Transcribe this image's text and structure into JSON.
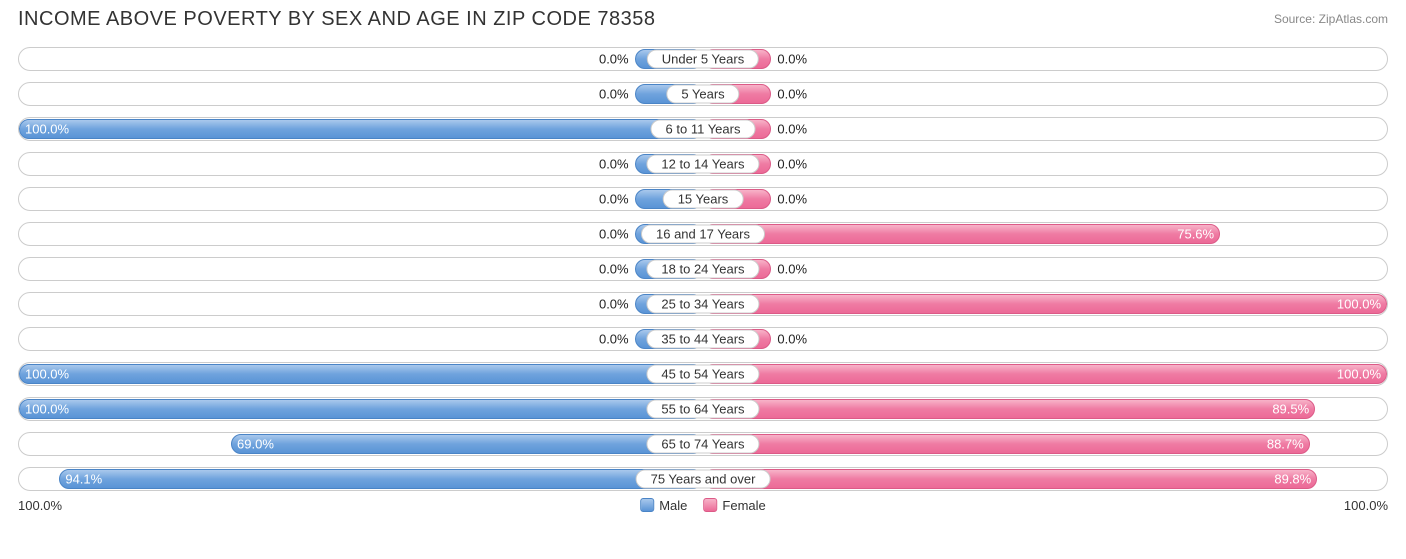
{
  "title": "INCOME ABOVE POVERTY BY SEX AND AGE IN ZIP CODE 78358",
  "source": "Source: ZipAtlas.com",
  "legend": {
    "male": "Male",
    "female": "Female"
  },
  "axis": {
    "left": "100.0%",
    "right": "100.0%"
  },
  "chart": {
    "type": "diverging-bar",
    "min_bar_pct": 10.0,
    "colors": {
      "male_bar": "#5a94d6",
      "female_bar": "#ec6a97",
      "border": "#cccccc",
      "background": "#ffffff",
      "text": "#333333"
    },
    "rows": [
      {
        "age": "Under 5 Years",
        "male": 0.0,
        "female": 0.0,
        "male_label": "0.0%",
        "female_label": "0.0%"
      },
      {
        "age": "5 Years",
        "male": 0.0,
        "female": 0.0,
        "male_label": "0.0%",
        "female_label": "0.0%"
      },
      {
        "age": "6 to 11 Years",
        "male": 100.0,
        "female": 0.0,
        "male_label": "100.0%",
        "female_label": "0.0%"
      },
      {
        "age": "12 to 14 Years",
        "male": 0.0,
        "female": 0.0,
        "male_label": "0.0%",
        "female_label": "0.0%"
      },
      {
        "age": "15 Years",
        "male": 0.0,
        "female": 0.0,
        "male_label": "0.0%",
        "female_label": "0.0%"
      },
      {
        "age": "16 and 17 Years",
        "male": 0.0,
        "female": 75.6,
        "male_label": "0.0%",
        "female_label": "75.6%"
      },
      {
        "age": "18 to 24 Years",
        "male": 0.0,
        "female": 0.0,
        "male_label": "0.0%",
        "female_label": "0.0%"
      },
      {
        "age": "25 to 34 Years",
        "male": 0.0,
        "female": 100.0,
        "male_label": "0.0%",
        "female_label": "100.0%"
      },
      {
        "age": "35 to 44 Years",
        "male": 0.0,
        "female": 0.0,
        "male_label": "0.0%",
        "female_label": "0.0%"
      },
      {
        "age": "45 to 54 Years",
        "male": 100.0,
        "female": 100.0,
        "male_label": "100.0%",
        "female_label": "100.0%"
      },
      {
        "age": "55 to 64 Years",
        "male": 100.0,
        "female": 89.5,
        "male_label": "100.0%",
        "female_label": "89.5%"
      },
      {
        "age": "65 to 74 Years",
        "male": 69.0,
        "female": 88.7,
        "male_label": "69.0%",
        "female_label": "88.7%"
      },
      {
        "age": "75 Years and over",
        "male": 94.1,
        "female": 89.8,
        "male_label": "94.1%",
        "female_label": "89.8%"
      }
    ]
  }
}
